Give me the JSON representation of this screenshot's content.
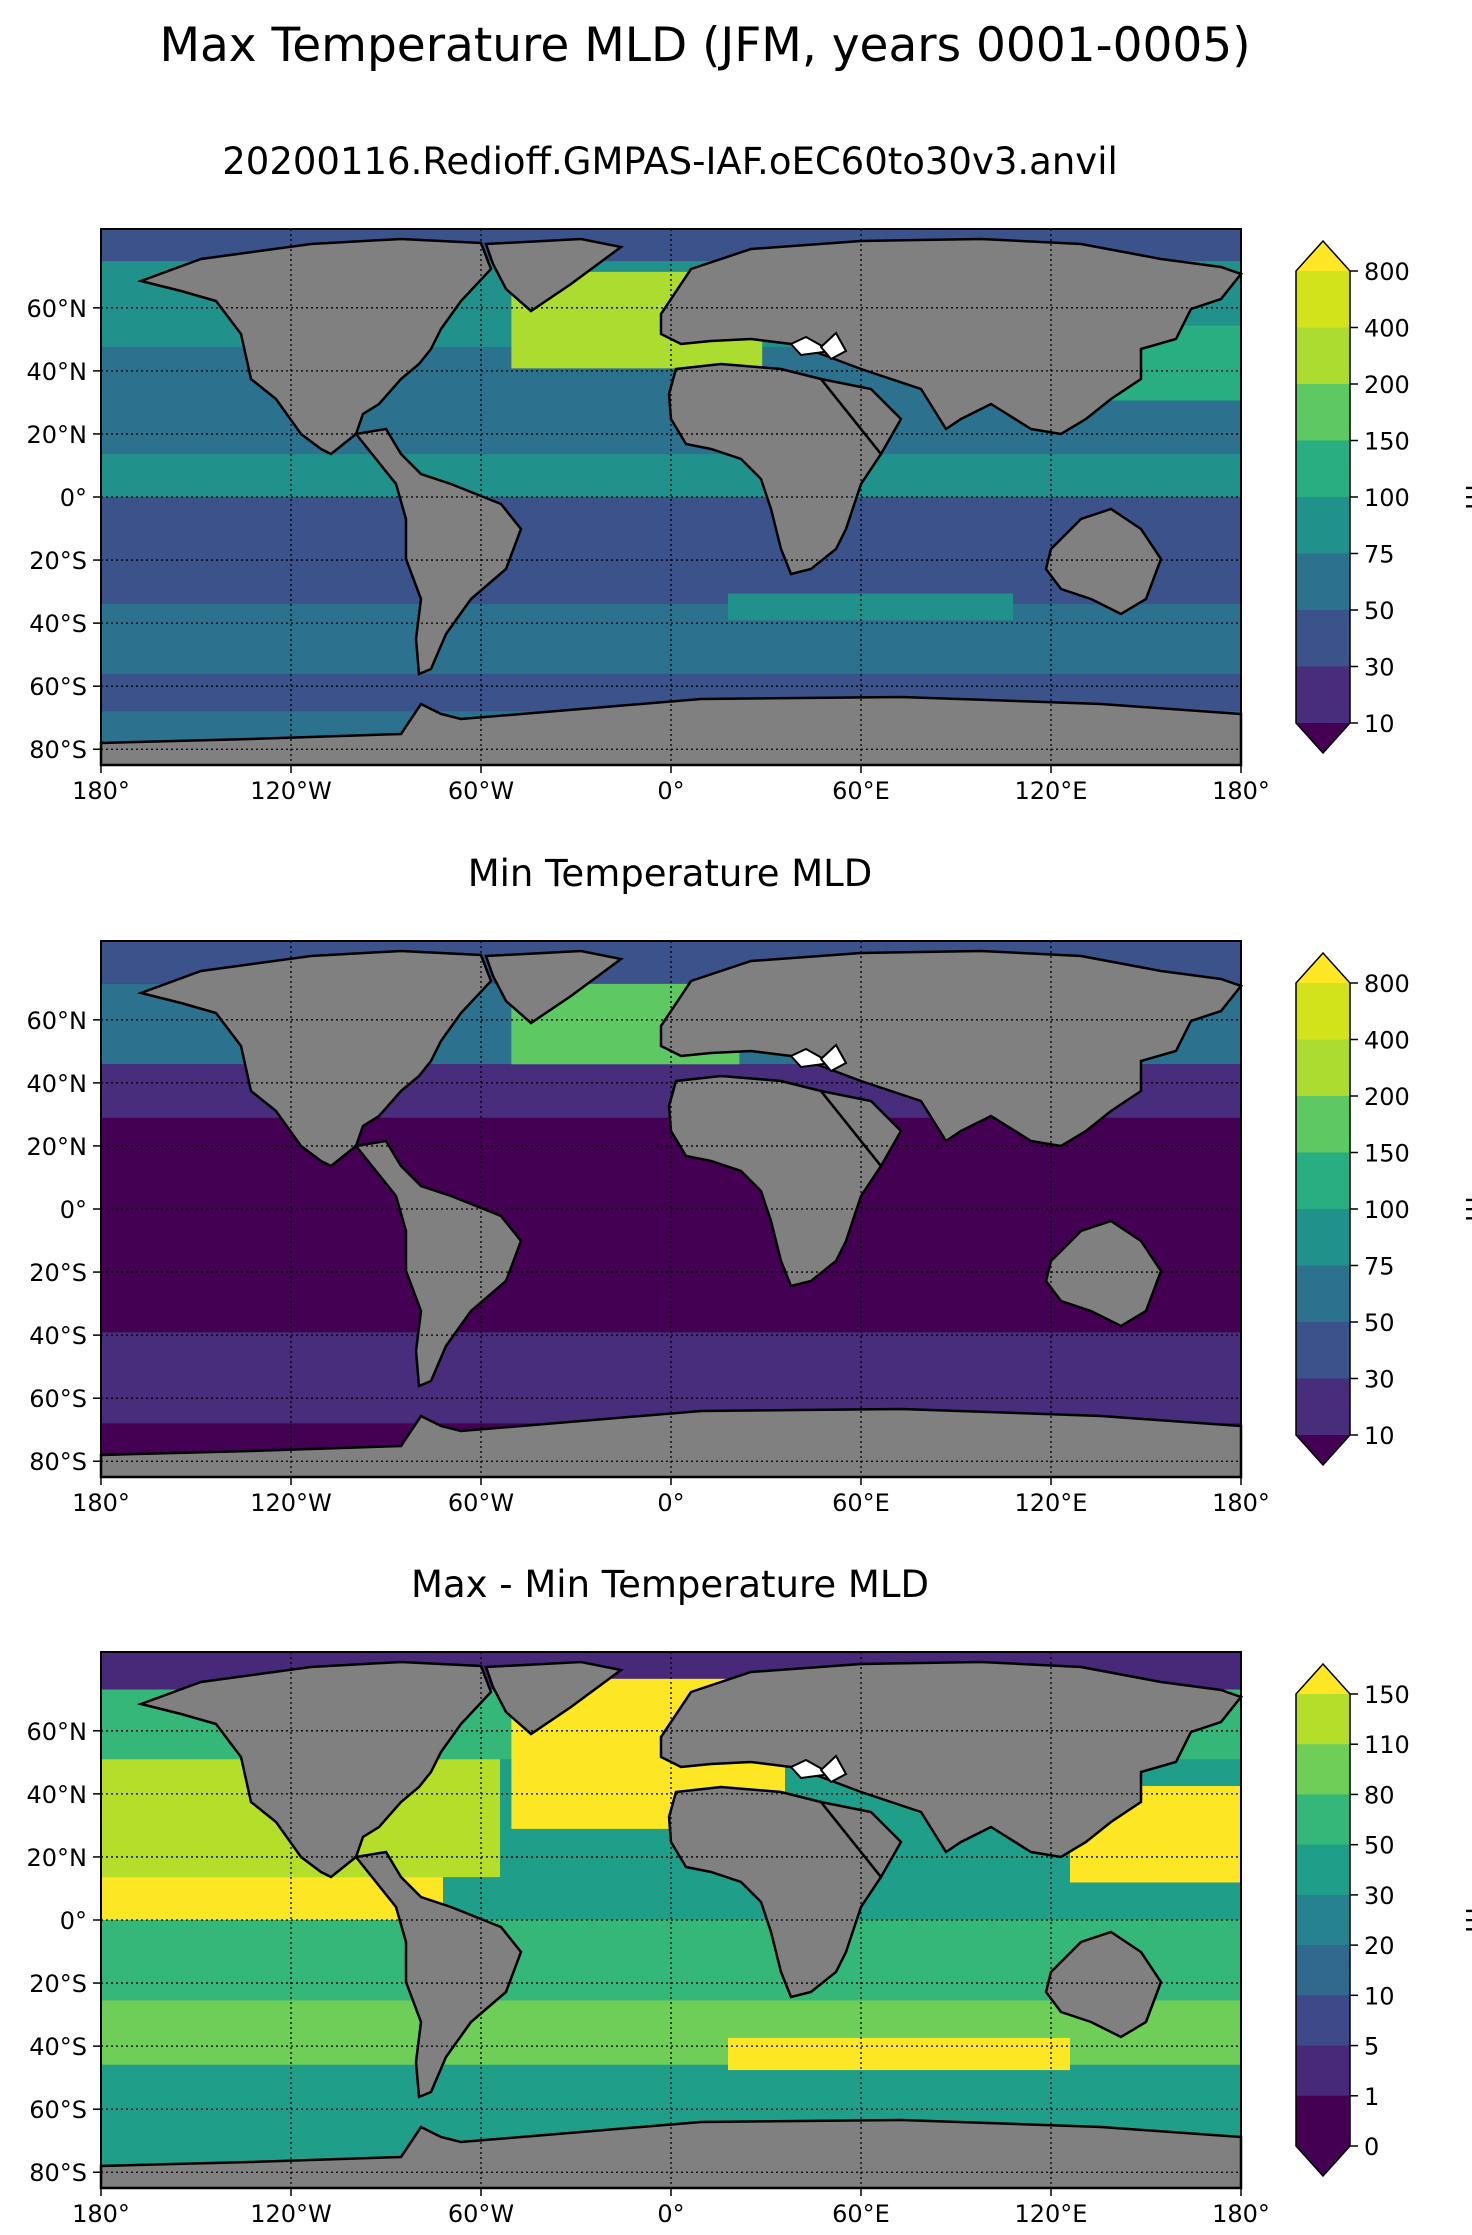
{
  "figure": {
    "suptitle": "Max Temperature MLD (JFM, years 0001-0005)"
  },
  "axes": {
    "lat_ticks": [
      "60°N",
      "40°N",
      "20°N",
      "0°",
      "20°S",
      "40°S",
      "60°S",
      "80°S"
    ],
    "lon_ticks": [
      "180°",
      "120°W",
      "60°W",
      "0°",
      "60°E",
      "120°E",
      "180°"
    ]
  },
  "colors": {
    "land": "#808080",
    "viridis_10": [
      "#440154",
      "#482878",
      "#3e4989",
      "#31688e",
      "#26828e",
      "#1f9e89",
      "#35b779",
      "#6ece58",
      "#b5de2b",
      "#fde725"
    ],
    "viridis_9_top": [
      "#440154",
      "#472d7b",
      "#3b528b",
      "#2c728e",
      "#21918c",
      "#28ae80",
      "#5ec962",
      "#addc30",
      "#d2e21b"
    ]
  },
  "panels": [
    {
      "title": "20200116.Redioff.GMPAS-IAF.oEC60to30v3.anvil",
      "colorbar": {
        "ticks": [
          "800",
          "400",
          "200",
          "150",
          "100",
          "75",
          "50",
          "30",
          "10"
        ],
        "label": "m",
        "extend": "both"
      }
    },
    {
      "title": "Min Temperature MLD",
      "colorbar": {
        "ticks": [
          "800",
          "400",
          "200",
          "150",
          "100",
          "75",
          "50",
          "30",
          "10"
        ],
        "label": "m",
        "extend": "both"
      }
    },
    {
      "title": "Max - Min Temperature MLD",
      "colorbar": {
        "ticks": [
          "150",
          "110",
          "80",
          "50",
          "30",
          "20",
          "10",
          "5",
          "1",
          "0"
        ],
        "label": "m",
        "extend": "both"
      }
    }
  ]
}
